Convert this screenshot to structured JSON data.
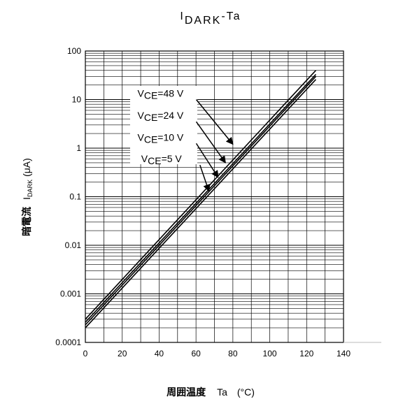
{
  "chart_data": {
    "type": "line",
    "title": {
      "main": "I",
      "sub": "DARK",
      "suffix": "-Ta"
    },
    "xlabel": {
      "jp": "周囲温度",
      "symbol": "Ta",
      "unit": "(°C)"
    },
    "ylabel": {
      "jp": "暗電流",
      "symbol": "I",
      "sub": "DARK",
      "unit": "(μA)"
    },
    "x_scale": "linear",
    "y_scale": "log",
    "xlim": [
      0,
      140
    ],
    "ylim": [
      0.0001,
      100
    ],
    "x_ticks": [
      "0",
      "20",
      "40",
      "60",
      "80",
      "100",
      "120",
      "140"
    ],
    "y_ticks": [
      "0.0001",
      "0.001",
      "0.01",
      "0.1",
      "1",
      "10",
      "100"
    ],
    "grid": true,
    "series": [
      {
        "name": "VCE=48 V",
        "x": [
          0,
          125
        ],
        "y": [
          0.0003,
          40
        ]
      },
      {
        "name": "VCE=24 V",
        "x": [
          0,
          125
        ],
        "y": [
          0.00026,
          33
        ]
      },
      {
        "name": "VCE=10 V",
        "x": [
          0,
          125
        ],
        "y": [
          0.00023,
          30
        ]
      },
      {
        "name": "VCE=5 V",
        "x": [
          0,
          125
        ],
        "y": [
          0.0002,
          26
        ]
      }
    ],
    "annotations": [
      {
        "prefix": "V",
        "sub": "CE",
        "value": "=48 V",
        "from": [
          48,
          10
        ],
        "to": [
          80,
          1.2
        ]
      },
      {
        "prefix": "V",
        "sub": "CE",
        "value": "=24 V",
        "from": [
          48,
          3.5
        ],
        "to": [
          76,
          0.5
        ]
      },
      {
        "prefix": "V",
        "sub": "CE",
        "value": "=10 V",
        "from": [
          48,
          1.25
        ],
        "to": [
          72,
          0.25
        ]
      },
      {
        "prefix": "V",
        "sub": "CE",
        "value": "=5 V",
        "from": [
          50,
          0.45
        ],
        "to": [
          67,
          0.13
        ]
      }
    ]
  }
}
